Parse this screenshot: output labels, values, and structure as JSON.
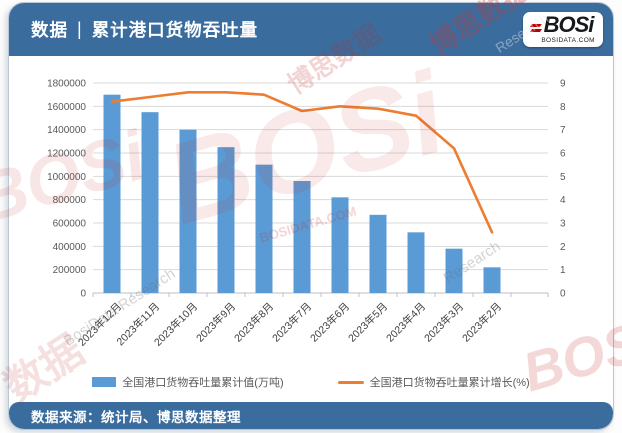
{
  "header": {
    "title_prefix": "数据",
    "separator": "|",
    "title": "累计港口货物吞吐量"
  },
  "logo": {
    "wordmark": "BOSi",
    "site": "BOSIDATA.COM"
  },
  "footer": {
    "source": "数据来源：统计局、博思数据整理"
  },
  "colors": {
    "banner_blue": "#3a6d9e",
    "bar_blue": "#5b9bd5",
    "line_orange": "#ed7d31",
    "gridline_gray": "#d9d9d9",
    "axis_text_gray": "#595959",
    "logo_red": "#c00000"
  },
  "watermarks": [
    "BOSi",
    "BOSIDATA.COM",
    "博思数据",
    "博思数据",
    "BosiData Research",
    "Research",
    "BOSi",
    "数据",
    "BOSi",
    "Research"
  ],
  "chart_data": {
    "type": "bar+line combo",
    "title": "累计港口货物吞吐量",
    "categories": [
      "2023年12月",
      "2023年11月",
      "2023年10月",
      "2023年9月",
      "2023年8月",
      "2023年7月",
      "2023年6月",
      "2023年5月",
      "2023年4月",
      "2023年3月",
      "2023年2月"
    ],
    "series": [
      {
        "name": "全国港口货物吞吐量累计值(万吨)",
        "type": "bar",
        "y_axis": "left",
        "color": "#5b9bd5",
        "values": [
          1700000,
          1550000,
          1400000,
          1250000,
          1100000,
          960000,
          820000,
          670000,
          520000,
          380000,
          220000
        ]
      },
      {
        "name": "全国港口货物吞吐量累计增长(%)",
        "type": "line",
        "y_axis": "right",
        "color": "#ed7d31",
        "values": [
          8.2,
          8.4,
          8.6,
          8.6,
          8.5,
          7.8,
          8.0,
          7.9,
          7.6,
          6.2,
          2.6
        ]
      }
    ],
    "left_axis": {
      "min": 0,
      "max": 1800000,
      "step": 200000
    },
    "right_axis": {
      "min": 0,
      "max": 9,
      "step": 1
    },
    "grid": true,
    "legend_position": "bottom"
  }
}
